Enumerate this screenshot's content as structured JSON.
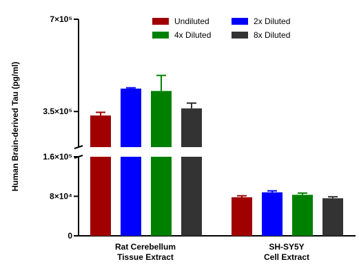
{
  "chart_data": {
    "type": "bar",
    "ylabel": "Human Brain-derived Tau (pg/ml)",
    "categories": [
      [
        "Rat Cerebellum",
        "Tissue Extract"
      ],
      [
        "SH-SY5Y",
        "Cell Extract"
      ]
    ],
    "y_axis": {
      "broken": true,
      "lower_segment_range": [
        0,
        160000
      ],
      "upper_segment_range": [
        215000,
        700000
      ],
      "tick_values": [
        0,
        80000,
        160000,
        350000,
        700000
      ],
      "tick_labels": [
        "0",
        "8×10⁴",
        "1.6×10⁵",
        "3.5×10⁵",
        "7×10⁵"
      ]
    },
    "legend_position": "top-right",
    "series": [
      {
        "name": "Undiluted",
        "color": "#a00000",
        "values": [
          335000,
          78000
        ],
        "errors": [
          12000,
          3000
        ]
      },
      {
        "name": "2x Diluted",
        "color": "#0000ff",
        "values": [
          437000,
          88000
        ],
        "errors": [
          3000,
          3000
        ]
      },
      {
        "name": "4x Diluted",
        "color": "#008000",
        "values": [
          428000,
          83000
        ],
        "errors": [
          59000,
          3500
        ]
      },
      {
        "name": "8x Diluted",
        "color": "#333333",
        "values": [
          362000,
          76000
        ],
        "errors": [
          20000,
          3000
        ]
      }
    ]
  }
}
